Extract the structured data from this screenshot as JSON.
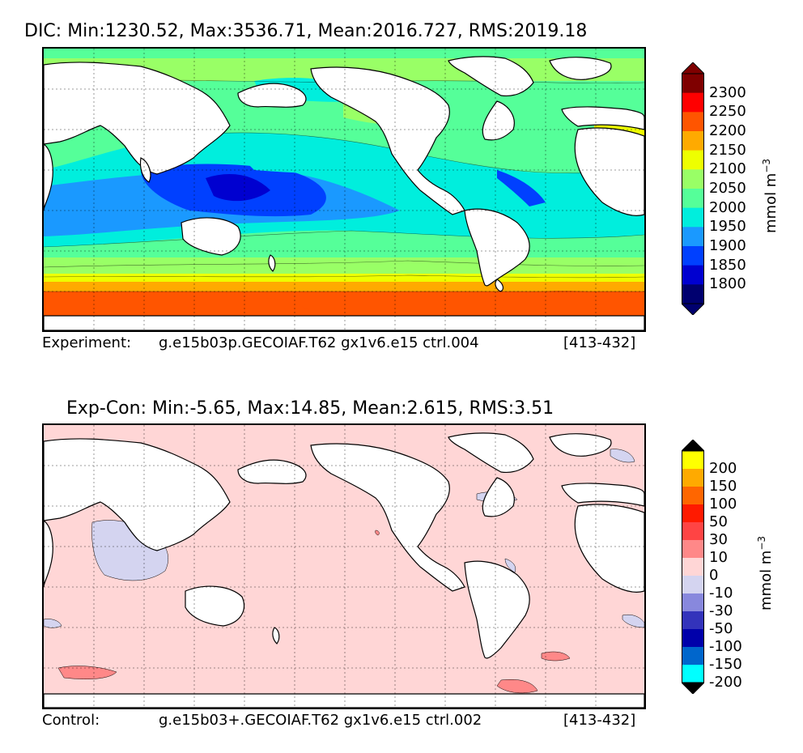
{
  "top_panel": {
    "title": "DIC: Min:1230.52, Max:3536.71, Mean:2016.727, RMS:2019.18",
    "caption_left": "Experiment:",
    "caption_mid": "g.e15b03p.GECOIAF.T62 gx1v6.e15 ctrl.004",
    "caption_right": "[413-432]",
    "colorbar": {
      "unit": "mmol m",
      "unit_exp": "−3",
      "ticks": [
        "2300",
        "2250",
        "2200",
        "2150",
        "2100",
        "2050",
        "2000",
        "1950",
        "1900",
        "1850",
        "1800"
      ],
      "colors_top_to_bottom": [
        "#7f0000",
        "#ff0000",
        "#ff5500",
        "#ffaa00",
        "#eeff00",
        "#99ff66",
        "#55ff99",
        "#00eedd",
        "#1a99ff",
        "#0040ff",
        "#0000d0",
        "#00006f"
      ],
      "extend_top_color": "#7f0000",
      "extend_bottom_color": "#00006f"
    }
  },
  "bottom_panel": {
    "title": "Exp-Con: Min:-5.65, Max:14.85, Mean:2.615, RMS:3.51",
    "caption_left": "Control:",
    "caption_mid": "g.e15b03+.GECOIAF.T62 gx1v6.e15 ctrl.002",
    "caption_right": "[413-432]",
    "colorbar": {
      "unit": "mmol m",
      "unit_exp": "−3",
      "ticks": [
        "200",
        "150",
        "100",
        "50",
        "30",
        "10",
        "0",
        "-10",
        "-30",
        "-50",
        "-100",
        "-150",
        "-200"
      ],
      "colors_top_to_bottom": [
        "#ffff00",
        "#ffaa00",
        "#ff6600",
        "#ff1a00",
        "#ff4444",
        "#ff8888",
        "#ffd6d6",
        "#d4d4f0",
        "#8888dd",
        "#3333bb",
        "#0000aa",
        "#0066cc",
        "#00ffff"
      ],
      "extend_top_color": "#000000",
      "extend_bottom_color": "#000000"
    }
  }
}
